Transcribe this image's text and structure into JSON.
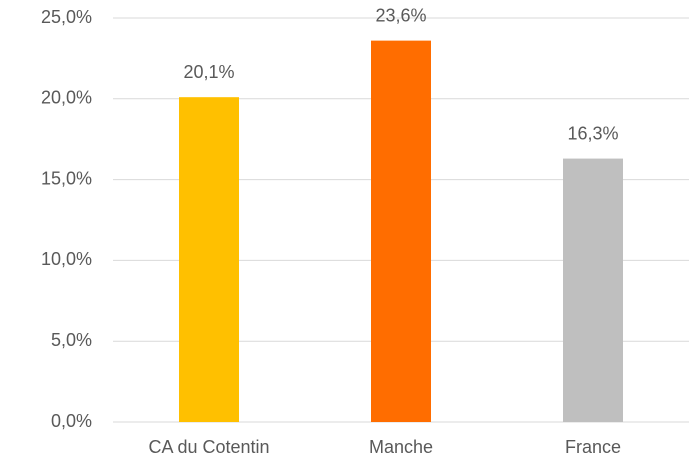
{
  "chart_data": {
    "type": "bar",
    "categories": [
      "CA du Cotentin",
      "Manche",
      "France"
    ],
    "values": [
      20.1,
      23.6,
      16.3
    ],
    "value_labels": [
      "20,1%",
      "23,6%",
      "16,3%"
    ],
    "colors": [
      "#ffc000",
      "#ff6d00",
      "#bfbfbf"
    ],
    "ylim": [
      0,
      25
    ],
    "yticks": [
      {
        "value": 0,
        "label": "0,0%"
      },
      {
        "value": 5,
        "label": "5,0%"
      },
      {
        "value": 10,
        "label": "10,0%"
      },
      {
        "value": 15,
        "label": "15,0%"
      },
      {
        "value": 20,
        "label": "20,0%"
      },
      {
        "value": 25,
        "label": "25,0%"
      }
    ],
    "grid": true
  }
}
